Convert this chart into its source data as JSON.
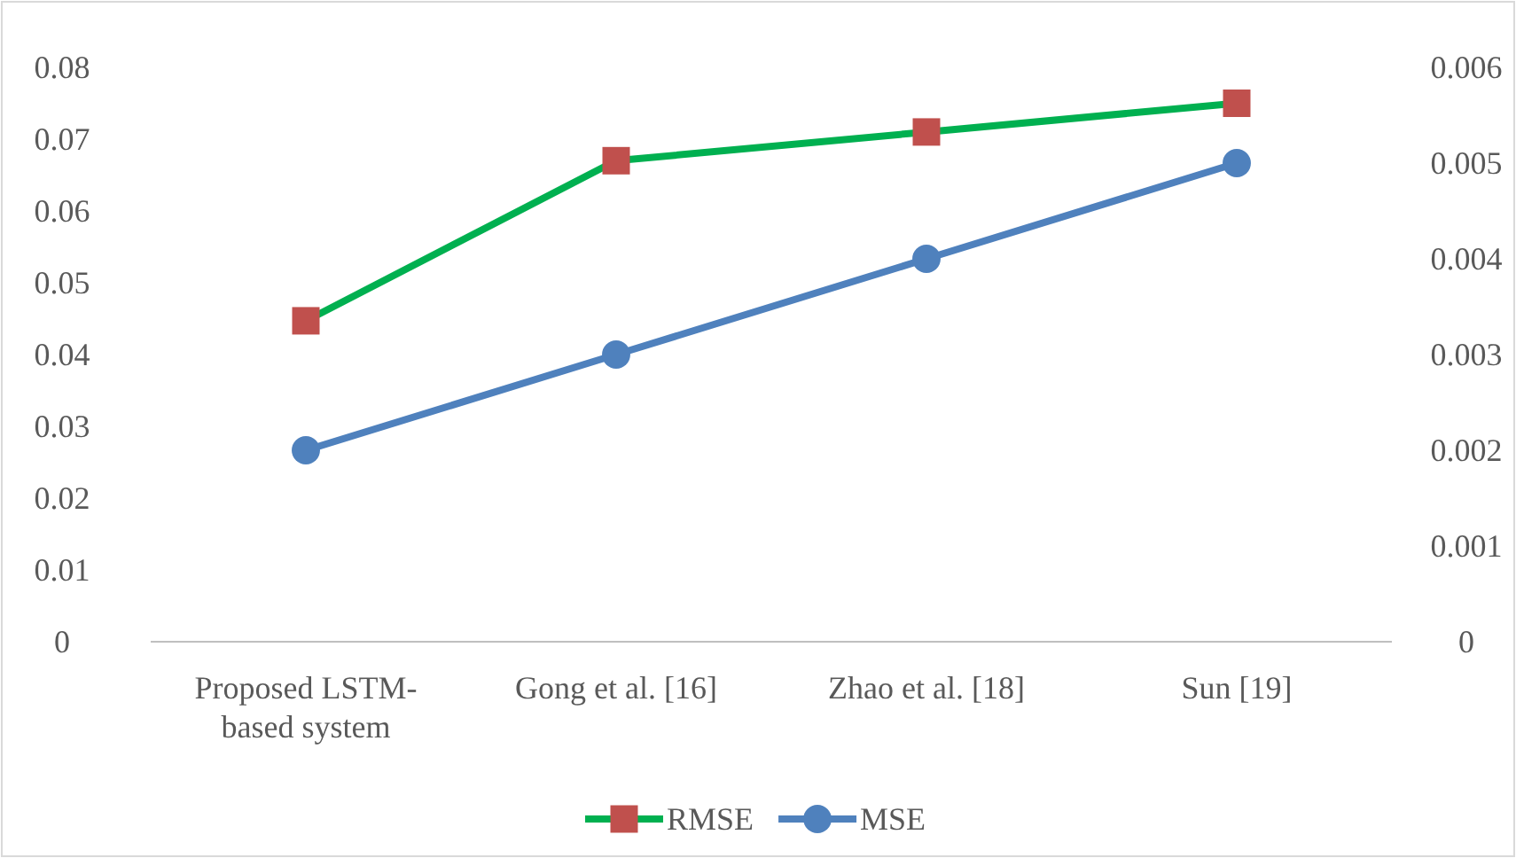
{
  "chart_data": {
    "type": "line",
    "categories": [
      "Proposed LSTM-based system",
      "Gong et al. [16]",
      "Zhao et al. [18]",
      "Sun [19]"
    ],
    "series": [
      {
        "name": "RMSE",
        "color": "#00b050",
        "marker": "square",
        "colors": [
          "#c0504d",
          "#c0504d",
          "#c0504d",
          "#c0504d"
        ],
        "values": [
          0.0447,
          0.067,
          0.071,
          0.075
        ]
      },
      {
        "name": "MSE",
        "color": "#4f81bd",
        "marker": "circle",
        "axis": "y2",
        "values": [
          0.002,
          0.003,
          0.004,
          0.005
        ]
      }
    ],
    "ylim": [
      0,
      0.08
    ],
    "yticks": [
      0,
      0.01,
      0.02,
      0.03,
      0.04,
      0.05,
      0.06,
      0.07,
      0.08
    ],
    "y2lim": [
      0,
      0.006
    ],
    "y2ticks": [
      0,
      0.001,
      0.002,
      0.003,
      0.004,
      0.005,
      0.006
    ],
    "grid": false,
    "legend": "bottom",
    "line_style": "solid"
  }
}
